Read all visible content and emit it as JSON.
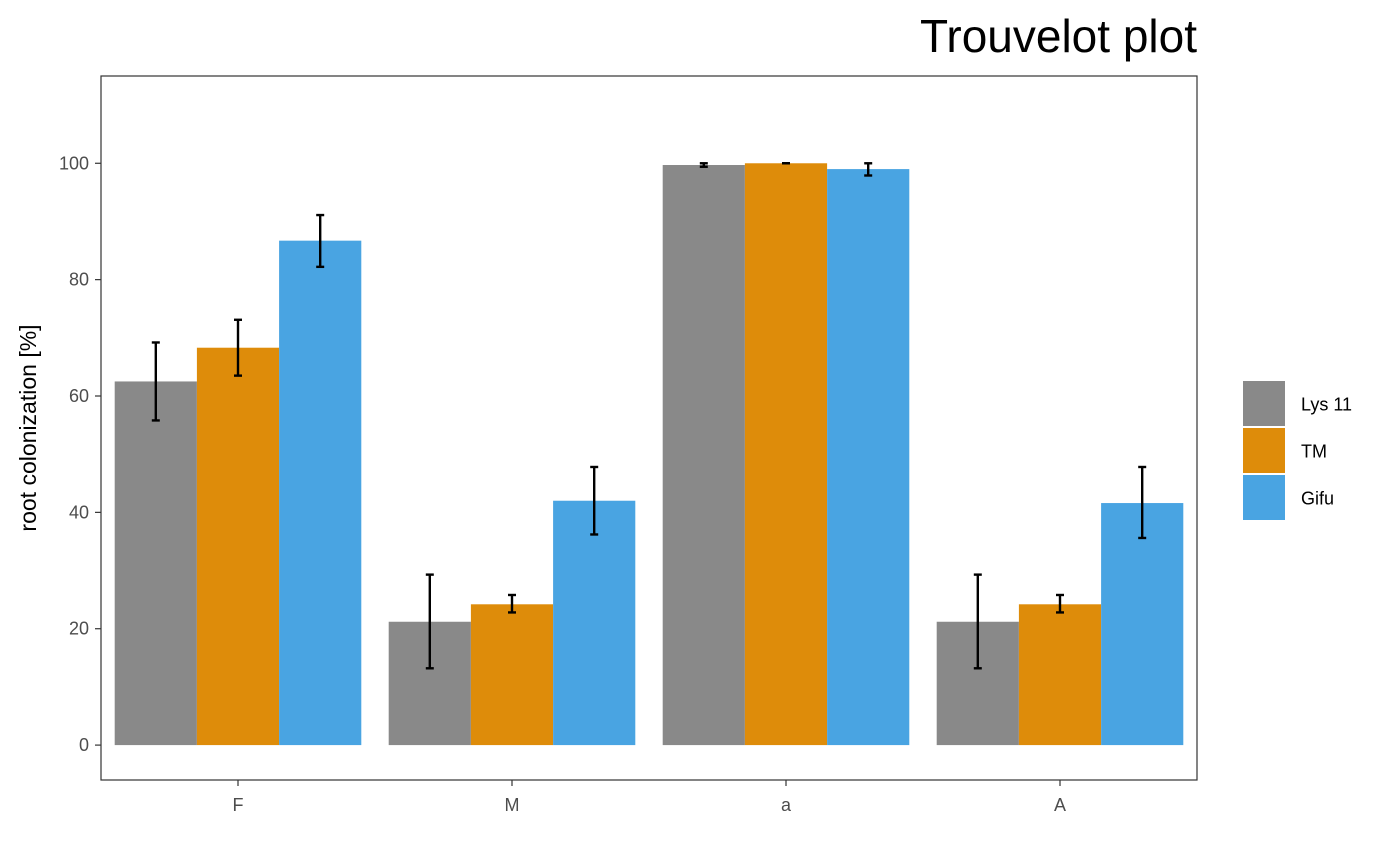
{
  "chart_data": {
    "type": "bar",
    "title": "Trouvelot plot",
    "xlabel": "",
    "ylabel": "root colonization [%]",
    "categories": [
      "F",
      "M",
      "a",
      "A"
    ],
    "ylim": [
      -6,
      115
    ],
    "yticks": [
      0,
      20,
      40,
      60,
      80,
      100
    ],
    "grid": false,
    "legend_position": "right",
    "series": [
      {
        "name": "Lys 11",
        "color": "#898989",
        "values": [
          62.5,
          21.2,
          99.7,
          21.2
        ],
        "error_low": [
          55.8,
          13.2,
          99.4,
          13.2
        ],
        "error_high": [
          69.2,
          29.3,
          100.0,
          29.3
        ]
      },
      {
        "name": "TM",
        "color": "#DE8C0A",
        "values": [
          68.3,
          24.2,
          100.0,
          24.2
        ],
        "error_low": [
          63.5,
          22.8,
          100.0,
          22.8
        ],
        "error_high": [
          73.1,
          25.8,
          100.0,
          25.8
        ]
      },
      {
        "name": "Gifu",
        "color": "#49A4E2",
        "values": [
          86.7,
          42.0,
          99.0,
          41.6
        ],
        "error_low": [
          82.2,
          36.2,
          97.9,
          35.6
        ],
        "error_high": [
          91.1,
          47.8,
          100.0,
          47.8
        ]
      }
    ]
  }
}
